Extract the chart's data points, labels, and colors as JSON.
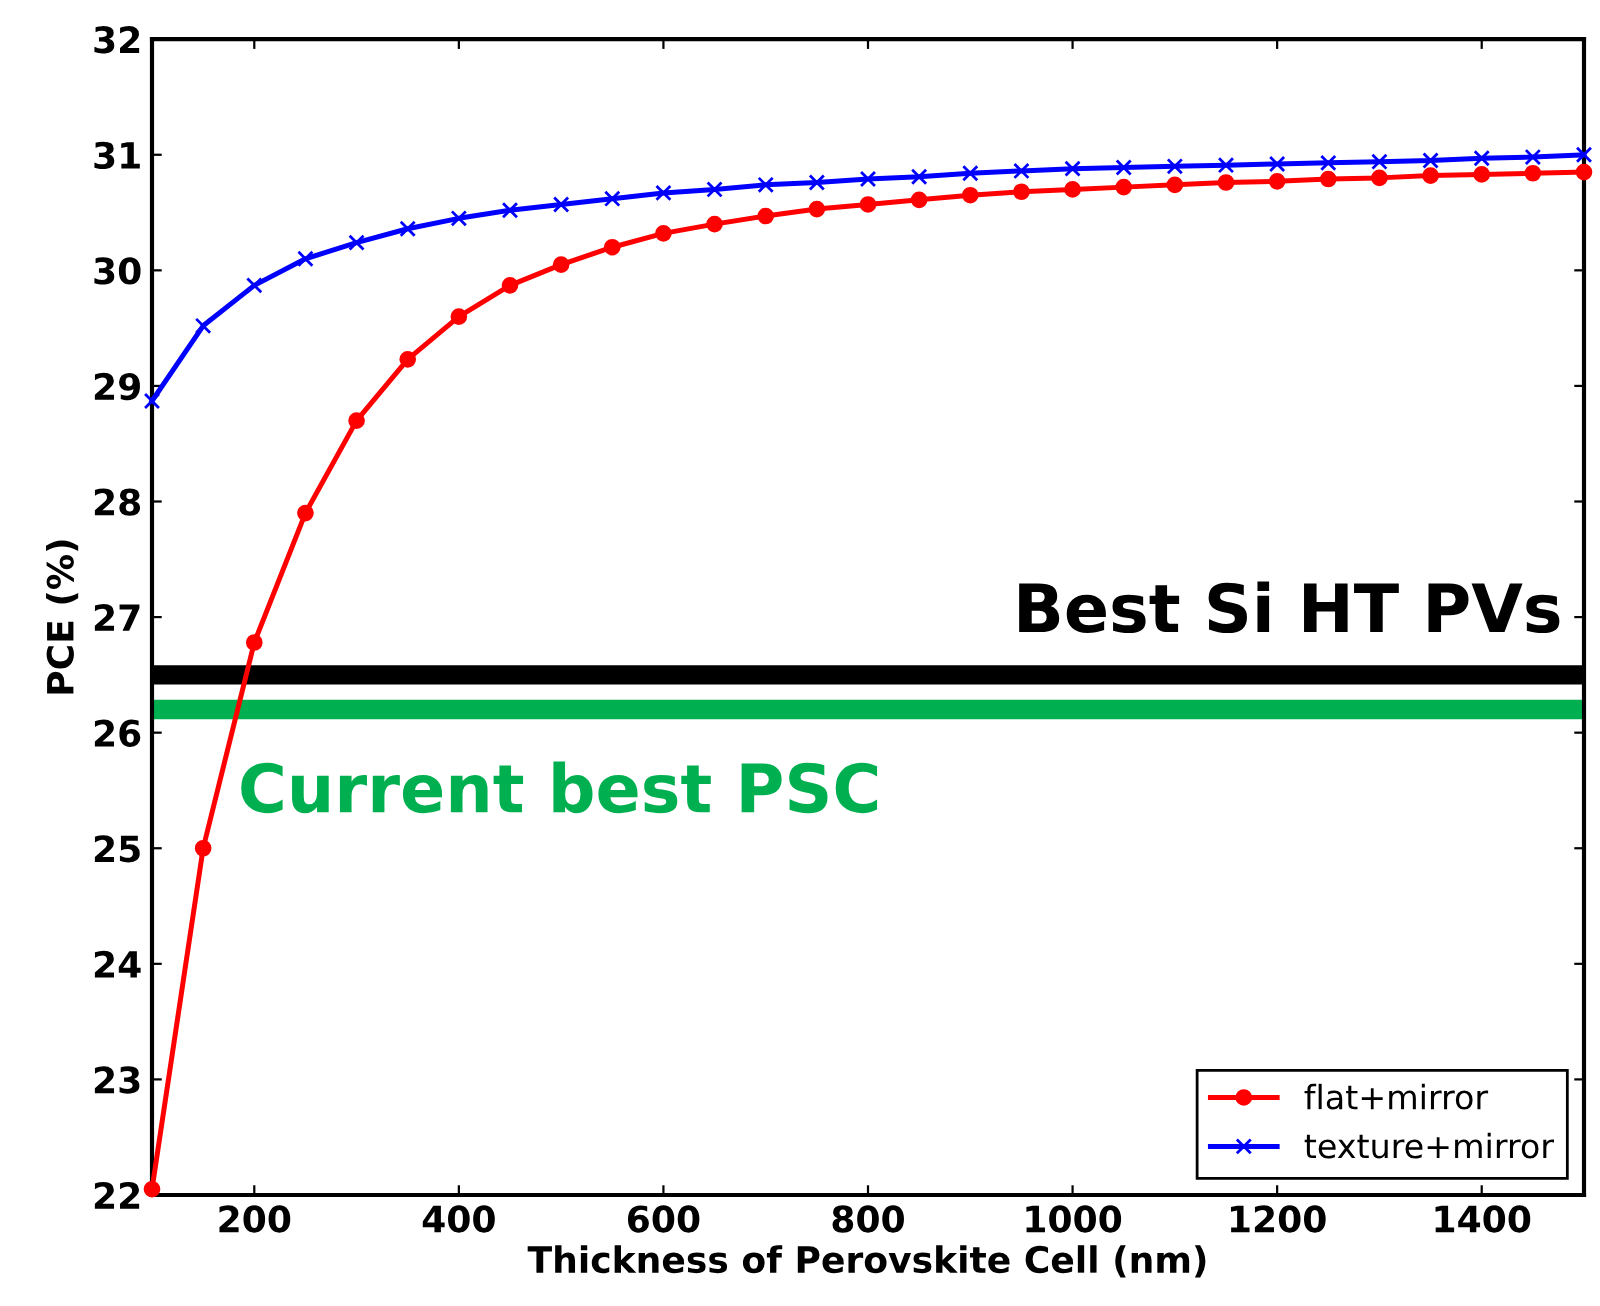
{
  "chart_data": {
    "type": "line",
    "xlabel": "Thickness of Perovskite Cell (nm)",
    "ylabel": "PCE (%)",
    "x": [
      100,
      150,
      200,
      250,
      300,
      350,
      400,
      450,
      500,
      550,
      600,
      650,
      700,
      750,
      800,
      850,
      900,
      950,
      1000,
      1050,
      1100,
      1150,
      1200,
      1250,
      1300,
      1350,
      1400,
      1450,
      1500
    ],
    "series": [
      {
        "name": "flat+mirror",
        "color": "#ff0000",
        "marker": "circle",
        "values": [
          22.05,
          25.0,
          26.78,
          27.9,
          28.7,
          29.23,
          29.6,
          29.87,
          30.05,
          30.2,
          30.32,
          30.4,
          30.47,
          30.53,
          30.57,
          30.61,
          30.65,
          30.68,
          30.7,
          30.72,
          30.74,
          30.76,
          30.77,
          30.79,
          30.8,
          30.82,
          30.83,
          30.84,
          30.85
        ]
      },
      {
        "name": "texture+mirror",
        "color": "#0000ff",
        "marker": "cross",
        "values": [
          28.87,
          29.52,
          29.87,
          30.1,
          30.24,
          30.36,
          30.45,
          30.52,
          30.57,
          30.62,
          30.67,
          30.7,
          30.74,
          30.76,
          30.79,
          30.81,
          30.84,
          30.86,
          30.88,
          30.89,
          30.9,
          30.91,
          30.92,
          30.93,
          30.94,
          30.95,
          30.97,
          30.98,
          31.0
        ]
      }
    ],
    "ref_lines": [
      {
        "axis": "y",
        "value": 26.5,
        "label": "Best Si HT PVs",
        "color": "#000000"
      },
      {
        "axis": "y",
        "value": 26.2,
        "label": "Current best PSC",
        "color": "#00b050"
      }
    ],
    "xlim": [
      100,
      1500
    ],
    "ylim": [
      22,
      32
    ],
    "xticks": [
      200,
      400,
      600,
      800,
      1000,
      1200,
      1400
    ],
    "yticks": [
      22,
      23,
      24,
      25,
      26,
      27,
      28,
      29,
      30,
      31,
      32
    ],
    "grid": false,
    "legend": "bottom right"
  }
}
